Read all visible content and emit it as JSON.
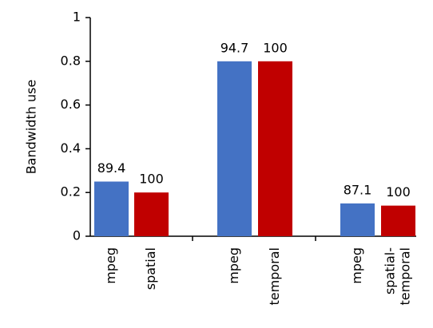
{
  "chart_data": {
    "type": "bar",
    "y_label": "Bandwidth use",
    "categories": [
      "mpeg",
      "spatial",
      "mpeg",
      "temporal",
      "mpeg",
      [
        "spatial-",
        "temporal"
      ]
    ],
    "values": [
      0.25,
      0.2,
      0.8,
      0.8,
      0.15,
      0.14
    ],
    "colors": [
      "#4472c4",
      "#c00000",
      "#4472c4",
      "#c00000",
      "#4472c4",
      "#c00000"
    ],
    "annotations": [
      "89.4",
      "100",
      "94.7",
      "100",
      "87.1",
      "100"
    ],
    "ylim": [
      0,
      1
    ],
    "yticks": [
      0,
      0.2,
      0.4,
      0.6,
      0.8,
      1
    ],
    "grid": false
  }
}
